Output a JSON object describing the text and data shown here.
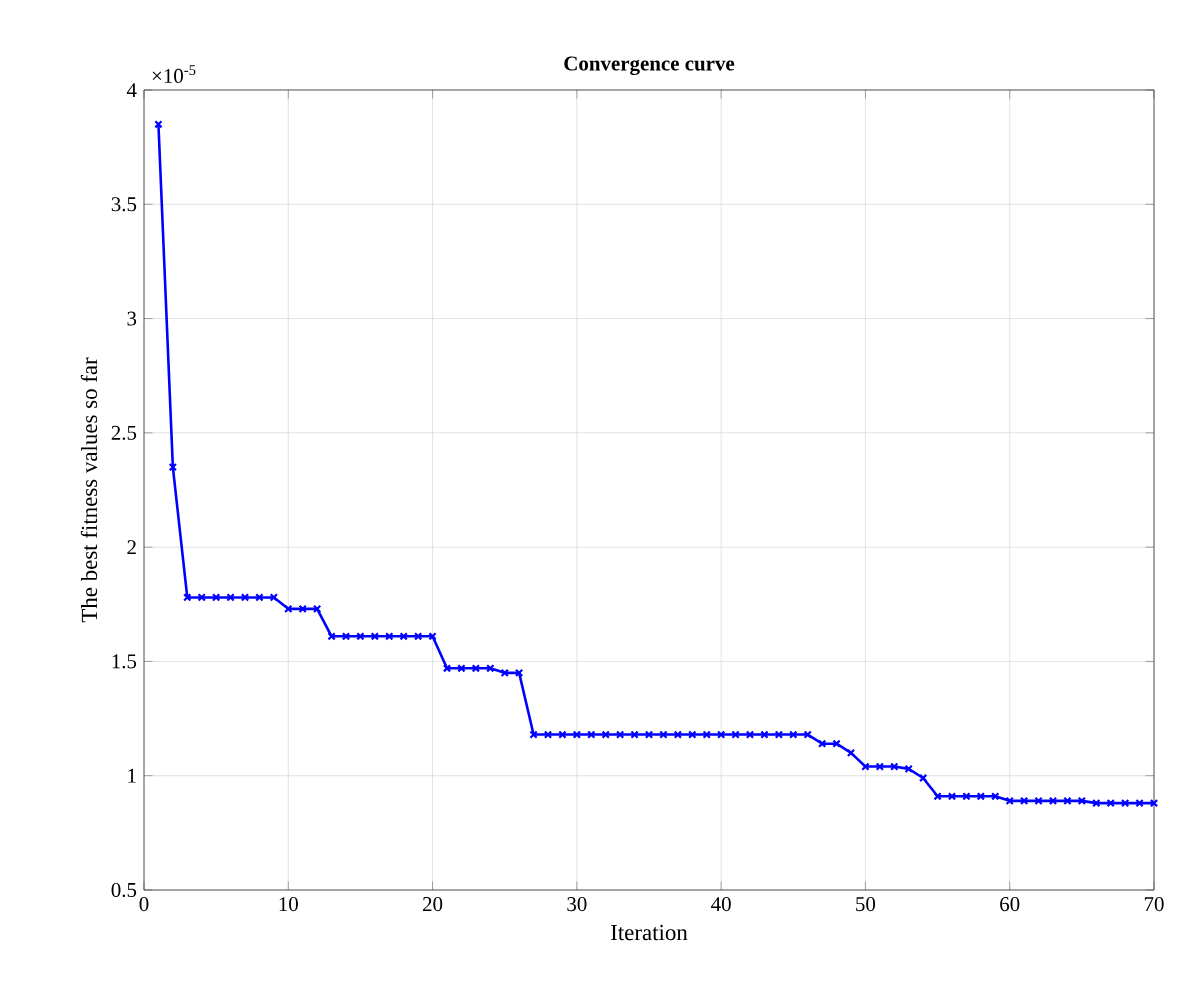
{
  "chart_data": {
    "type": "line",
    "title": "Convergence curve",
    "xlabel": "Iteration",
    "ylabel": "The best fitness values so far",
    "annotations": [
      "×10$^{-5}$"
    ],
    "x": [
      1,
      2,
      3,
      4,
      5,
      6,
      7,
      8,
      9,
      10,
      11,
      12,
      13,
      14,
      15,
      16,
      17,
      18,
      19,
      20,
      21,
      22,
      23,
      24,
      25,
      26,
      27,
      28,
      29,
      30,
      31,
      32,
      33,
      34,
      35,
      36,
      37,
      38,
      39,
      40,
      41,
      42,
      43,
      44,
      45,
      46,
      47,
      48,
      49,
      50,
      51,
      52,
      53,
      54,
      55,
      56,
      57,
      58,
      59,
      60,
      61,
      62,
      63,
      64,
      65,
      66,
      67,
      68,
      69,
      70
    ],
    "series": [
      {
        "color": "#0000ff",
        "values": [
          3.85,
          2.35,
          1.78,
          1.78,
          1.78,
          1.78,
          1.78,
          1.78,
          1.78,
          1.73,
          1.73,
          1.73,
          1.61,
          1.61,
          1.61,
          1.61,
          1.61,
          1.61,
          1.61,
          1.61,
          1.47,
          1.47,
          1.47,
          1.47,
          1.45,
          1.45,
          1.18,
          1.18,
          1.18,
          1.18,
          1.18,
          1.18,
          1.18,
          1.18,
          1.18,
          1.18,
          1.18,
          1.18,
          1.18,
          1.18,
          1.18,
          1.18,
          1.18,
          1.18,
          1.18,
          1.18,
          1.14,
          1.14,
          1.1,
          1.04,
          1.04,
          1.04,
          1.03,
          0.99,
          0.91,
          0.91,
          0.91,
          0.91,
          0.91,
          0.89,
          0.89,
          0.89,
          0.89,
          0.89,
          0.89,
          0.88,
          0.88,
          0.88,
          0.88,
          0.88
        ]
      }
    ],
    "xlim": [
      0,
      70
    ],
    "xticks": [
      0,
      10,
      20,
      30,
      40,
      50,
      60,
      70
    ],
    "ylim": [
      0.5,
      4
    ],
    "yticks": [
      0.5,
      1,
      1.5,
      2,
      2.5,
      3,
      3.5,
      4
    ],
    "grid": true,
    "marker": "cross",
    "line_style": "solid"
  }
}
